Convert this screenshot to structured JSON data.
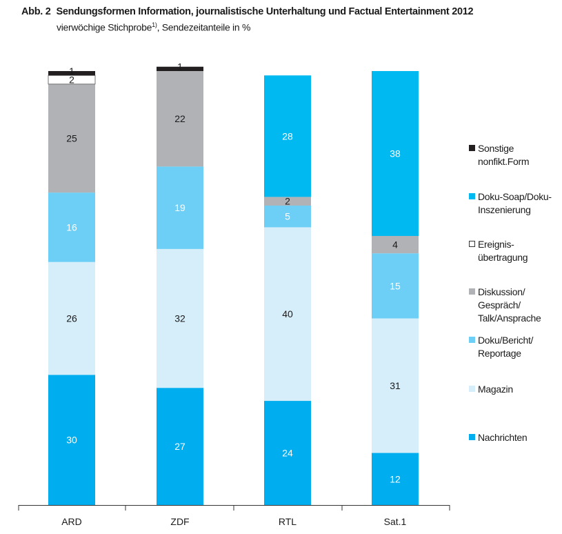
{
  "title_num": "Abb. 2",
  "title": "Sendungsformen Information, journalistische Unterhaltung und Factual Entertainment 2012",
  "subtitle_main": "vierwöchige Stichprobe",
  "subtitle_sup": "1)",
  "subtitle_rest": ", Sendezeitanteile in %",
  "colors": {
    "Nachrichten": "#00aeef",
    "Magazin": "#d6eefa",
    "Doku/Bericht/Reportage": "#6dcff6",
    "Diskussion": "#b0b2b5",
    "Ereignis": "#ffffff",
    "DokuSoap": "#00b9f1",
    "Sonstige": "#231f20"
  },
  "legend": [
    {
      "key": "Sonstige",
      "label": "Sonstige\nnonfikt.Form"
    },
    {
      "key": "DokuSoap",
      "label": "Doku-Soap/Doku-\nInszenierung"
    },
    {
      "key": "Ereignis",
      "label": "Ereignis-\nübertragung"
    },
    {
      "key": "Diskussion",
      "label": "Diskussion/\nGespräch/\nTalk/Ansprache"
    },
    {
      "key": "Doku/Bericht/Reportage",
      "label": "Doku/Bericht/\nReportage"
    },
    {
      "key": "Magazin",
      "label": "Magazin"
    },
    {
      "key": "Nachrichten",
      "label": "Nachrichten"
    }
  ],
  "chart_data": {
    "type": "bar",
    "stacked": true,
    "categories": [
      "ARD",
      "ZDF",
      "RTL",
      "Sat.1"
    ],
    "series": [
      {
        "name": "Nachrichten",
        "values": [
          30,
          27,
          24,
          12
        ]
      },
      {
        "name": "Magazin",
        "values": [
          26,
          32,
          40,
          31
        ]
      },
      {
        "name": "Doku/Bericht/\nReportage",
        "values": [
          16,
          19,
          5,
          15
        ]
      },
      {
        "name": "Diskussion/\nGespräch/\nTalk/Ansprache",
        "values": [
          25,
          22,
          2,
          4
        ]
      },
      {
        "name": "Ereignis-\nübertragung",
        "values": [
          2,
          0,
          0,
          0
        ]
      },
      {
        "name": "Doku-Soap/Doku-\nInszenierung",
        "values": [
          0,
          0,
          28,
          38
        ]
      },
      {
        "name": "Sonstige\nnonfikt.Form",
        "values": [
          1,
          1,
          0,
          0
        ]
      }
    ],
    "series_keys": [
      "Nachrichten",
      "Magazin",
      "Doku/Bericht/Reportage",
      "Diskussion",
      "Ereignis",
      "DokuSoap",
      "Sonstige"
    ],
    "ylim": [
      0,
      100
    ],
    "grid": false,
    "legend_position": "right"
  }
}
